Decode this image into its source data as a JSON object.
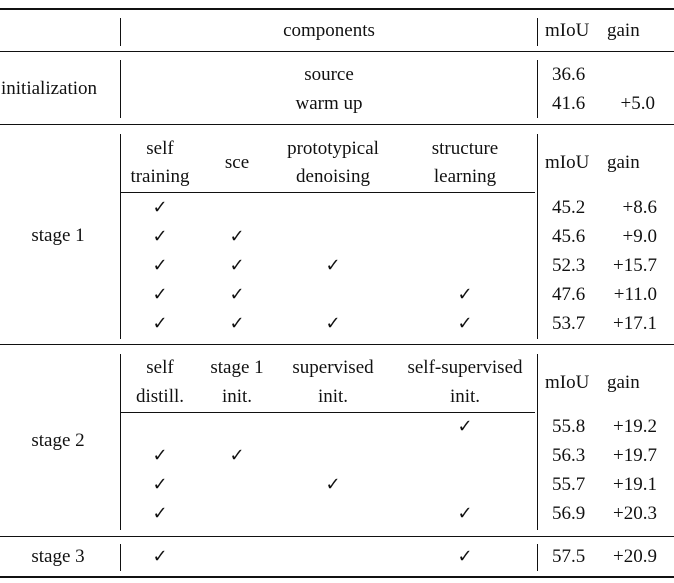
{
  "header": {
    "components": "components",
    "miou": "mIoU",
    "gain": "gain"
  },
  "initialization": {
    "label": "initialization",
    "rows": [
      {
        "component": "source",
        "miou": "36.6",
        "gain": ""
      },
      {
        "component": "warm up",
        "miou": "41.6",
        "gain": "+5.0"
      }
    ]
  },
  "stage1": {
    "label": "stage 1",
    "columns": [
      {
        "line1": "self",
        "line2": "training"
      },
      {
        "line1": "sce",
        "line2": ""
      },
      {
        "line1": "prototypical",
        "line2": "denoising"
      },
      {
        "line1": "structure",
        "line2": "learning"
      }
    ],
    "miou_header": "mIoU",
    "gain_header": "gain",
    "rows": [
      {
        "checks": [
          true,
          false,
          false,
          false
        ],
        "miou": "45.2",
        "gain": "+8.6"
      },
      {
        "checks": [
          true,
          true,
          false,
          false
        ],
        "miou": "45.6",
        "gain": "+9.0"
      },
      {
        "checks": [
          true,
          true,
          true,
          false
        ],
        "miou": "52.3",
        "gain": "+15.7"
      },
      {
        "checks": [
          true,
          true,
          false,
          true
        ],
        "miou": "47.6",
        "gain": "+11.0"
      },
      {
        "checks": [
          true,
          true,
          true,
          true
        ],
        "miou": "53.7",
        "gain": "+17.1"
      }
    ]
  },
  "stage2": {
    "label": "stage 2",
    "columns": [
      {
        "line1": "self",
        "line2": "distill."
      },
      {
        "line1": "stage 1",
        "line2": "init."
      },
      {
        "line1": "supervised",
        "line2": "init."
      },
      {
        "line1": "self-supervised",
        "line2": "init."
      }
    ],
    "miou_header": "mIoU",
    "gain_header": "gain",
    "rows": [
      {
        "checks": [
          false,
          false,
          false,
          true
        ],
        "miou": "55.8",
        "gain": "+19.2"
      },
      {
        "checks": [
          true,
          true,
          false,
          false
        ],
        "miou": "56.3",
        "gain": "+19.7"
      },
      {
        "checks": [
          true,
          false,
          true,
          false
        ],
        "miou": "55.7",
        "gain": "+19.1"
      },
      {
        "checks": [
          true,
          false,
          false,
          true
        ],
        "miou": "56.9",
        "gain": "+20.3"
      }
    ]
  },
  "stage3": {
    "label": "stage 3",
    "checks": [
      true,
      false,
      false,
      true
    ],
    "miou": "57.5",
    "gain": "+20.9"
  },
  "check_symbol": "✓"
}
